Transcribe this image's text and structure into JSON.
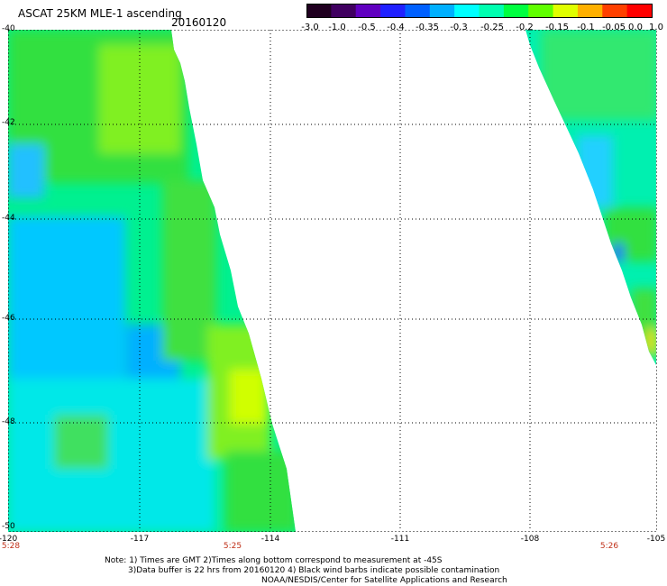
{
  "header": {
    "title": "ASCAT 25KM MLE-1 ascending",
    "date": "20160120"
  },
  "colorbar": {
    "labels": [
      "-3.0",
      "-1.0",
      "-0.5",
      "-0.4",
      "-0.35",
      "-0.3",
      "-0.25",
      "-0.2",
      "-0.15",
      "-0.1",
      "-0.05",
      "0.0",
      "1.0"
    ],
    "colors": [
      "#200020",
      "#400060",
      "#6000c0",
      "#2020ff",
      "#0060ff",
      "#00b0ff",
      "#00ffff",
      "#00ffb0",
      "#00ff40",
      "#60ff00",
      "#e0ff00",
      "#ffb000",
      "#ff4000",
      "#ff0000"
    ]
  },
  "axes": {
    "lat_labels": [
      "-40",
      "-42",
      "-44",
      "-46",
      "-48",
      "-50"
    ],
    "lon_labels": [
      "-120",
      "-117",
      "-114",
      "-111",
      "-108",
      "-105"
    ],
    "time_labels": [
      "5:28",
      "5:25",
      "5:26"
    ]
  },
  "notes": {
    "line1": "Note: 1) Times are GMT 2)Times along bottom correspond to measurement at -45S",
    "line2": "3)Data buffer is 22 hrs from 20160120 4) Black wind barbs indicate possible contamination",
    "line3": "NOAA/NESDIS/Center for Satellite Applications and Research"
  }
}
